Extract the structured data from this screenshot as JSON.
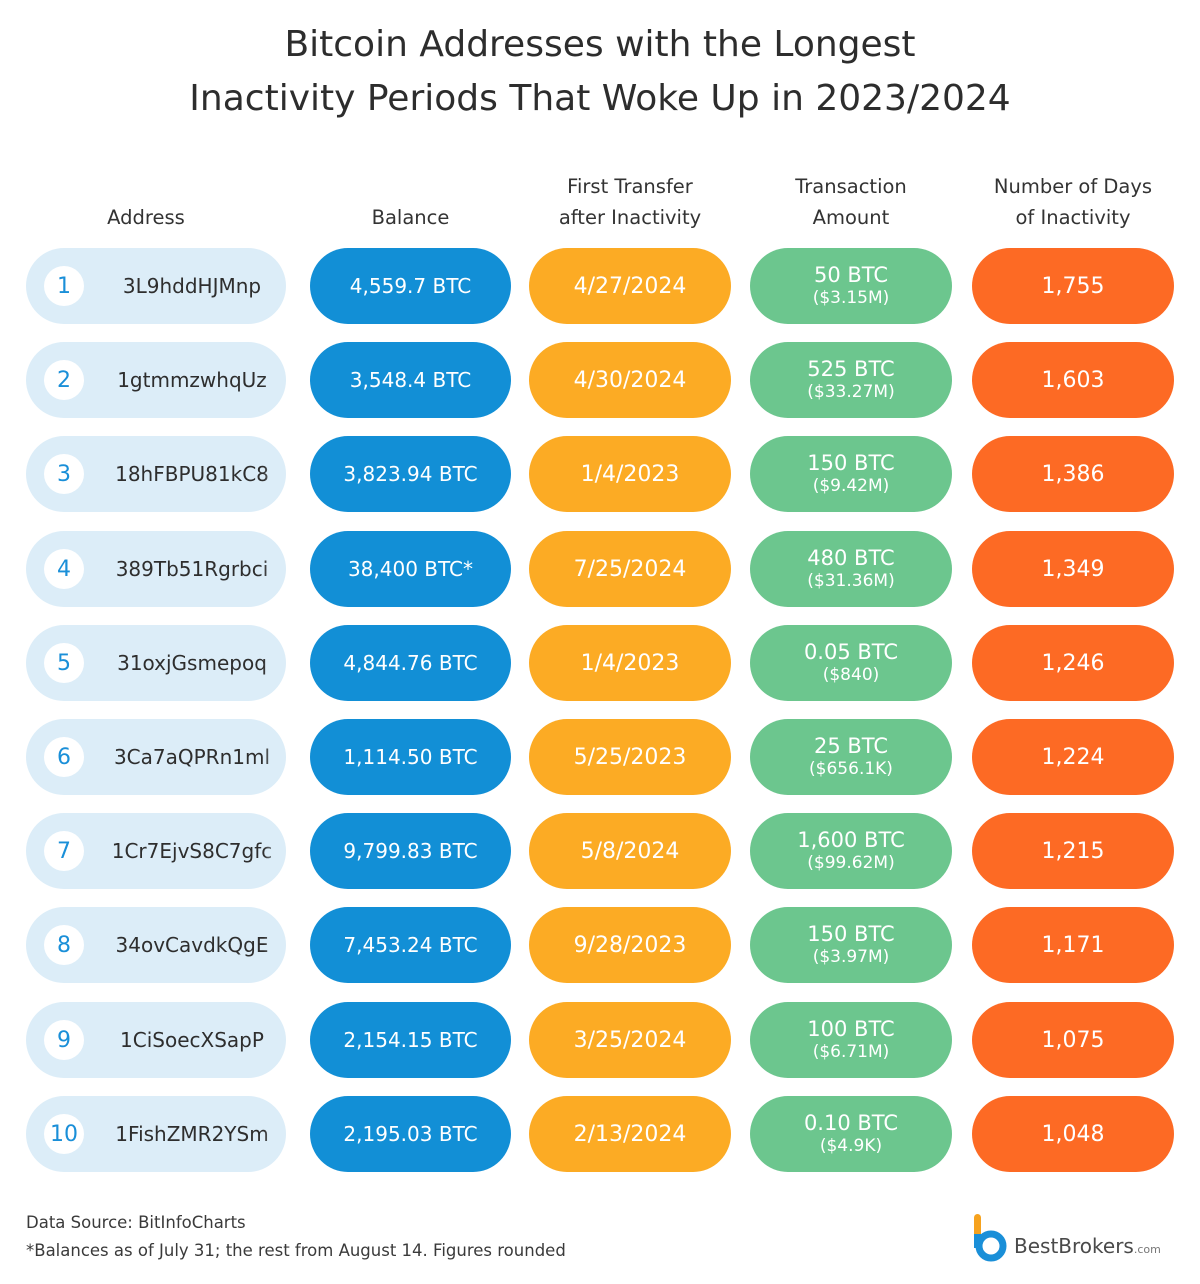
{
  "title": {
    "line1": "Bitcoin Addresses with the Longest",
    "line2": "Inactivity Periods That Woke Up in 2023/2024"
  },
  "columns": {
    "address": "Address",
    "balance": "Balance",
    "first_transfer_line1": "First Transfer",
    "first_transfer_line2": "after Inactivity",
    "amount_line1": "Transaction",
    "amount_line2": "Amount",
    "days_line1": "Number of Days",
    "days_line2": "of Inactivity"
  },
  "chart_data": {
    "type": "table",
    "title": "Bitcoin Addresses with the Longest Inactivity Periods That Woke Up in 2023/2024",
    "columns": [
      "Address",
      "Balance",
      "First Transfer after Inactivity",
      "Transaction Amount",
      "Number of Days of Inactivity"
    ],
    "rows": [
      {
        "rank": "1",
        "address": "3L9hddHJMnp",
        "balance": "4,559.7 BTC",
        "first_transfer": "4/27/2024",
        "amount_btc": "50 BTC",
        "amount_usd": "($3.15M)",
        "days": "1,755",
        "days_value": 1755
      },
      {
        "rank": "2",
        "address": "1gtmmzwhqUz",
        "balance": "3,548.4 BTC",
        "first_transfer": "4/30/2024",
        "amount_btc": "525 BTC",
        "amount_usd": "($33.27M)",
        "days": "1,603",
        "days_value": 1603
      },
      {
        "rank": "3",
        "address": "18hFBPU81kC8",
        "balance": "3,823.94 BTC",
        "first_transfer": "1/4/2023",
        "amount_btc": "150 BTC",
        "amount_usd": "($9.42M)",
        "days": "1,386",
        "days_value": 1386
      },
      {
        "rank": "4",
        "address": "389Tb51Rgrbci",
        "balance": "38,400 BTC*",
        "first_transfer": "7/25/2024",
        "amount_btc": "480 BTC",
        "amount_usd": "($31.36M)",
        "days": "1,349",
        "days_value": 1349
      },
      {
        "rank": "5",
        "address": "31oxjGsmepoq",
        "balance": "4,844.76 BTC",
        "first_transfer": "1/4/2023",
        "amount_btc": "0.05 BTC",
        "amount_usd": "($840)",
        "days": "1,246",
        "days_value": 1246
      },
      {
        "rank": "6",
        "address": "3Ca7aQPRn1ml",
        "balance": "1,114.50 BTC",
        "first_transfer": "5/25/2023",
        "amount_btc": "25 BTC",
        "amount_usd": "($656.1K)",
        "days": "1,224",
        "days_value": 1224
      },
      {
        "rank": "7",
        "address": "1Cr7EjvS8C7gfc",
        "balance": "9,799.83 BTC",
        "first_transfer": "5/8/2024",
        "amount_btc": "1,600 BTC",
        "amount_usd": "($99.62M)",
        "days": "1,215",
        "days_value": 1215
      },
      {
        "rank": "8",
        "address": "34ovCavdkQgE",
        "balance": "7,453.24 BTC",
        "first_transfer": "9/28/2023",
        "amount_btc": "150 BTC",
        "amount_usd": "($3.97M)",
        "days": "1,171",
        "days_value": 1171
      },
      {
        "rank": "9",
        "address": "1CiSoecXSapP",
        "balance": "2,154.15 BTC",
        "first_transfer": "3/25/2024",
        "amount_btc": "100 BTC",
        "amount_usd": "($6.71M)",
        "days": "1,075",
        "days_value": 1075
      },
      {
        "rank": "10",
        "address": "1FishZMR2YSm",
        "balance": "2,195.03 BTC",
        "first_transfer": "2/13/2024",
        "amount_btc": "0.10 BTC",
        "amount_usd": "($4.9K)",
        "days": "1,048",
        "days_value": 1048
      }
    ]
  },
  "footer": {
    "source": "Data Source: BitInfoCharts",
    "note": "*Balances as of July 31; the rest from August 14. Figures rounded",
    "brand": "BestBrokers",
    "brand_suffix": ".com"
  },
  "colors": {
    "address_bg": "#dcedf8",
    "balance": "#128fd6",
    "first_transfer": "#fcab24",
    "amount": "#6cc68e",
    "days": "#fd6a24"
  },
  "icons": {
    "logo": "bestbrokers-logo-icon"
  }
}
